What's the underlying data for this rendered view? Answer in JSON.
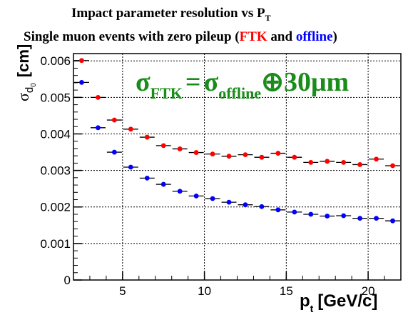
{
  "chart_data": {
    "type": "scatter",
    "title_line1": "Impact parameter resolution vs P",
    "title_line1_sub": "T",
    "title_line2_prefix": "Single muon events with zero pileup (",
    "title_line2_ftk": "FTK",
    "title_line2_and": " and ",
    "title_line2_offline": "offline",
    "title_line2_suffix": ")",
    "annotation": {
      "sigma1": "σ",
      "sub1": "FTK",
      "eq": "=",
      "sigma2": "σ",
      "sub2": "offline",
      "rest": "⊕30μm",
      "color": "#1a8c1a"
    },
    "ylabel": {
      "sigma": "σ",
      "sub": "d",
      "subsub": "0",
      "unit": "[cm]"
    },
    "xlabel": {
      "p": "p",
      "sub": "t",
      "unit": "[GeV/c]"
    },
    "xlim": [
      2,
      22
    ],
    "ylim": [
      0,
      0.0062
    ],
    "xticks": [
      5,
      10,
      15,
      20
    ],
    "xtick_labels": [
      "5",
      "10",
      "15",
      "20"
    ],
    "yticks": [
      0,
      0.001,
      0.002,
      0.003,
      0.004,
      0.005,
      0.006
    ],
    "ytick_labels": [
      "0",
      "0.001",
      "0.002",
      "0.003",
      "0.004",
      "0.005",
      "0.006"
    ],
    "grid": true,
    "bin_half_width": 0.5,
    "series": [
      {
        "color": "#ff0000",
        "x": [
          2.5,
          3.5,
          4.5,
          5.5,
          6.5,
          7.5,
          8.5,
          9.5,
          10.5,
          11.5,
          12.5,
          13.5,
          14.5,
          15.5,
          16.5,
          17.5,
          18.5,
          19.5,
          20.5,
          21.5
        ],
        "y": [
          0.00601,
          0.005,
          0.00438,
          0.00413,
          0.00391,
          0.00368,
          0.00359,
          0.00349,
          0.00345,
          0.00339,
          0.00343,
          0.00336,
          0.00347,
          0.00336,
          0.00322,
          0.00325,
          0.00322,
          0.00316,
          0.00331,
          0.00313
        ]
      },
      {
        "color": "#0000ff",
        "x": [
          2.5,
          3.5,
          4.5,
          5.5,
          6.5,
          7.5,
          8.5,
          9.5,
          10.5,
          11.5,
          12.5,
          13.5,
          14.5,
          15.5,
          16.5,
          17.5,
          18.5,
          19.5,
          20.5,
          21.5
        ],
        "y": [
          0.00541,
          0.00417,
          0.0035,
          0.00309,
          0.00279,
          0.00262,
          0.00243,
          0.0023,
          0.00223,
          0.00213,
          0.00206,
          0.00201,
          0.00192,
          0.00186,
          0.0018,
          0.00175,
          0.00176,
          0.00169,
          0.00169,
          0.00162
        ]
      }
    ]
  }
}
